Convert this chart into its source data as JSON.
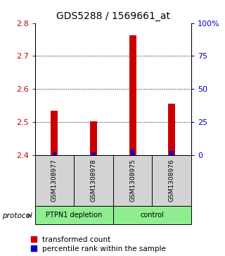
{
  "title": "GDS5288 / 1569661_at",
  "samples": [
    "GSM1308977",
    "GSM1308978",
    "GSM1308975",
    "GSM1308976"
  ],
  "red_values": [
    2.535,
    2.502,
    2.762,
    2.555
  ],
  "blue_values": [
    2,
    2,
    4,
    3
  ],
  "ylim_left": [
    2.4,
    2.8
  ],
  "ylim_right": [
    0,
    100
  ],
  "yticks_left": [
    2.4,
    2.5,
    2.6,
    2.7,
    2.8
  ],
  "yticks_right": [
    0,
    25,
    50,
    75,
    100
  ],
  "ytick_labels_right": [
    "0",
    "25",
    "50",
    "75",
    "100%"
  ],
  "protocol_label": "protocol",
  "red_color": "#CC0000",
  "blue_color": "#0000CC",
  "red_bar_width": 0.18,
  "blue_bar_width": 0.1,
  "sample_box_color": "#D3D3D3",
  "group_color": "#90EE90",
  "title_fontsize": 10,
  "tick_fontsize": 8,
  "legend_fontsize": 7.5,
  "group1_label": "PTPN1 depletion",
  "group2_label": "control"
}
